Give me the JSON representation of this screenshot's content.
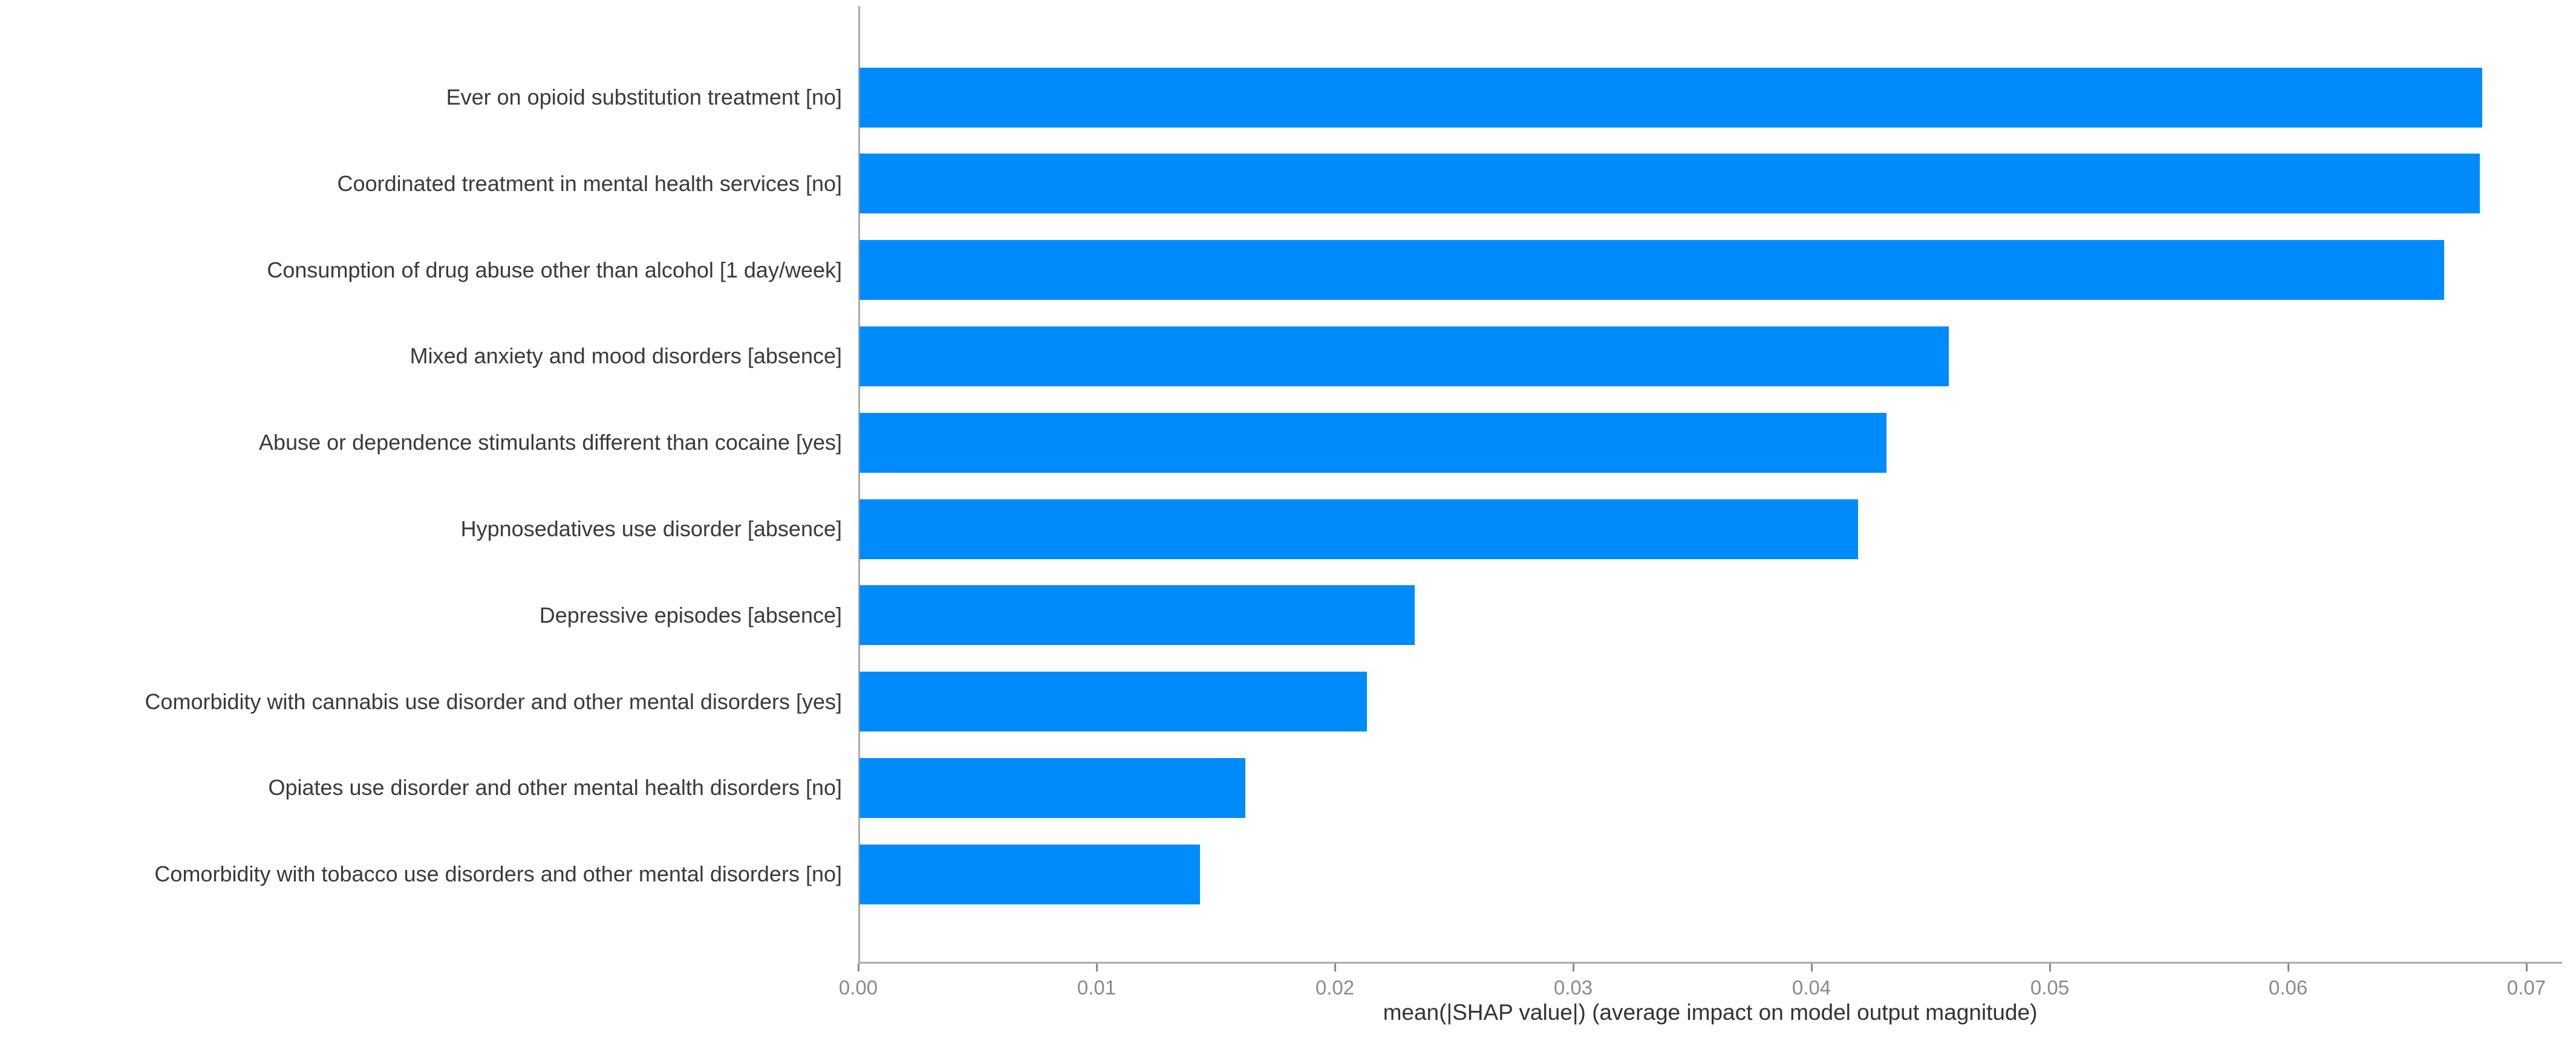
{
  "chart_data": {
    "type": "bar",
    "orientation": "horizontal",
    "title": "",
    "xlabel": "mean(|SHAP value|) (average impact on model output magnitude)",
    "ylabel": "",
    "categories": [
      "Ever on opioid substitution treatment [no]",
      "Coordinated treatment in mental health services [no]",
      "Consumption of drug abuse other than alcohol [1 day/week]",
      "Mixed anxiety and mood disorders [absence]",
      "Abuse or dependence stimulants different than cocaine [yes]",
      "Hypnosedatives use disorder [absence]",
      "Depressive episodes [absence]",
      "Comorbidity with cannabis use disorder and other mental disorders [yes]",
      "Opiates use disorder and other mental health disorders [no]",
      "Comorbidity with tobacco use disorders and other mental disorders [no]"
    ],
    "values": [
      0.0681,
      0.068,
      0.0665,
      0.0457,
      0.0431,
      0.0419,
      0.0233,
      0.0213,
      0.0162,
      0.0143
    ],
    "xticks": [
      0.0,
      0.01,
      0.02,
      0.03,
      0.04,
      0.05,
      0.06,
      0.07
    ],
    "xtick_labels": [
      "0.00",
      "0.01",
      "0.02",
      "0.03",
      "0.04",
      "0.05",
      "0.06",
      "0.07"
    ],
    "xlim": [
      0.0,
      0.0715
    ],
    "grid": false,
    "legend": null,
    "bar_color": "#008bfa",
    "spine_color": "#ababab",
    "tick_color": "#8a8a8a",
    "tick_label_color": "#8a8a8a",
    "category_label_color": "#3a3a3a",
    "xlabel_color": "#333333",
    "background_color": "#ffffff"
  }
}
